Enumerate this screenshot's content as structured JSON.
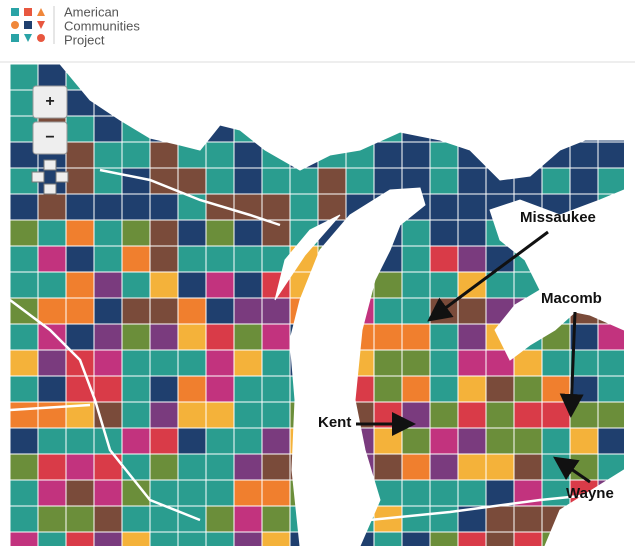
{
  "header": {
    "logo_text": [
      "American",
      "Communities",
      "Project"
    ]
  },
  "map": {
    "zoom_in": "+",
    "zoom_out": "−",
    "labels": [
      "Missaukee",
      "Macomb",
      "Kent",
      "Wayne"
    ]
  }
}
